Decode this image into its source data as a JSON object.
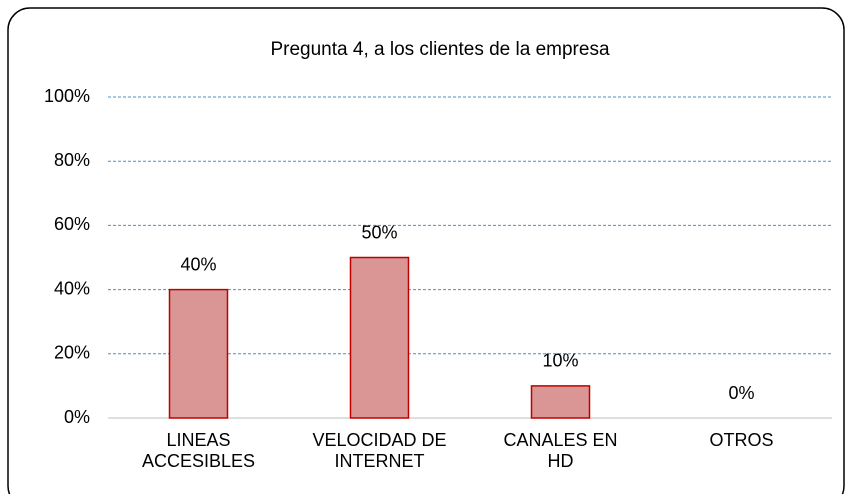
{
  "chart_data": {
    "type": "bar",
    "title": "Pregunta 4, a los clientes de la empresa",
    "categories": [
      "LINEAS\nACCESIBLES",
      "VELOCIDAD DE\nINTERNET",
      "CANALES EN\nHD",
      "OTROS"
    ],
    "values": [
      40,
      50,
      10,
      0
    ],
    "value_labels": [
      "40%",
      "50%",
      "10%",
      "0%"
    ],
    "color": "#d99694",
    "ylim": [
      0,
      100
    ],
    "yticks": [
      {
        "value": 0,
        "label": "0%"
      },
      {
        "value": 20,
        "label": "20%"
      },
      {
        "value": 40,
        "label": "40%"
      },
      {
        "value": 60,
        "label": "60%"
      },
      {
        "value": 80,
        "label": "80%"
      },
      {
        "value": 100,
        "label": "100%"
      }
    ],
    "grid": true
  }
}
